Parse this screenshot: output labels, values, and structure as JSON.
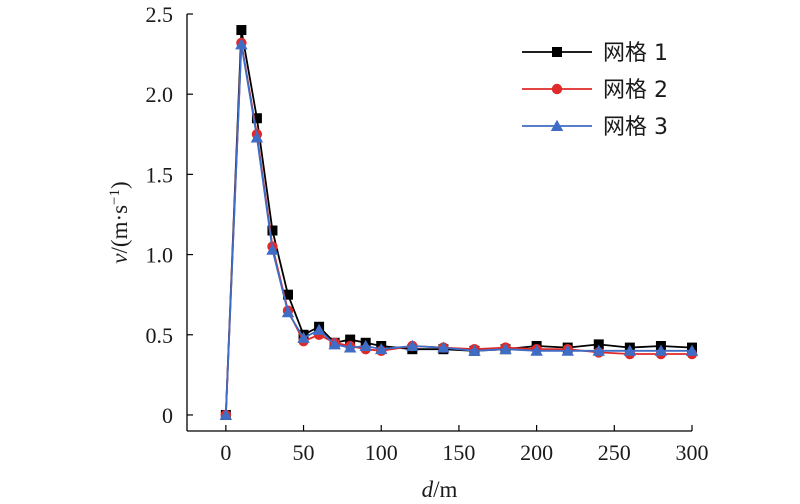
{
  "chart_data": {
    "type": "line",
    "xlabel": "d/m",
    "ylabel": "v/(m·s⁻¹)",
    "xlim": [
      -25,
      300
    ],
    "ylim": [
      -0.1,
      2.5
    ],
    "xticks": [
      0,
      50,
      100,
      150,
      200,
      250,
      300
    ],
    "yticks": [
      0,
      0.5,
      1.0,
      1.5,
      2.0,
      2.5
    ],
    "xtick_labels": [
      "0",
      "50",
      "100",
      "150",
      "200",
      "250",
      "300"
    ],
    "ytick_labels": [
      "0",
      "0.5",
      "1.0",
      "1.5",
      "2.0",
      "2.5"
    ],
    "legend_position": "top-right",
    "grid": false,
    "x": [
      0,
      10,
      20,
      30,
      40,
      50,
      60,
      70,
      80,
      90,
      100,
      120,
      140,
      160,
      180,
      200,
      220,
      240,
      260,
      280,
      300
    ],
    "series": [
      {
        "name": "网格 1",
        "color": "#000000",
        "marker": "square",
        "values": [
          0,
          2.4,
          1.85,
          1.15,
          0.75,
          0.5,
          0.55,
          0.45,
          0.47,
          0.45,
          0.43,
          0.41,
          0.41,
          0.4,
          0.41,
          0.43,
          0.42,
          0.44,
          0.42,
          0.43,
          0.42
        ]
      },
      {
        "name": "网格 2",
        "color": "#e02a2a",
        "marker": "circle",
        "values": [
          0,
          2.32,
          1.75,
          1.05,
          0.65,
          0.46,
          0.5,
          0.45,
          0.43,
          0.41,
          0.4,
          0.43,
          0.42,
          0.41,
          0.42,
          0.41,
          0.41,
          0.39,
          0.38,
          0.38,
          0.38
        ]
      },
      {
        "name": "网格 3",
        "color": "#3f6cc4",
        "marker": "triangle",
        "values": [
          0,
          2.31,
          1.73,
          1.03,
          0.64,
          0.48,
          0.53,
          0.44,
          0.42,
          0.43,
          0.41,
          0.43,
          0.42,
          0.4,
          0.41,
          0.4,
          0.4,
          0.4,
          0.4,
          0.4,
          0.4
        ]
      }
    ]
  }
}
